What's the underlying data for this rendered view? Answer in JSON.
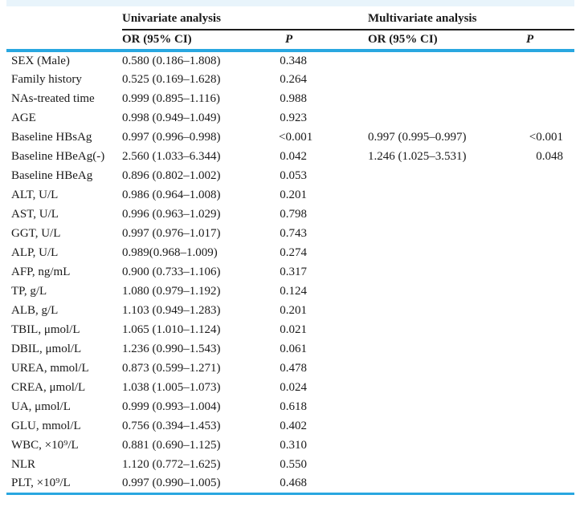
{
  "page": {
    "background": "#ffffff"
  },
  "table": {
    "accent_color": "#29a7e0",
    "topbar_color": "#e8f4fb",
    "groups": [
      {
        "label": "Univariate analysis"
      },
      {
        "label": "Multivariate analysis"
      }
    ],
    "subheaders": {
      "or": "OR (95% CI)",
      "p": "P"
    },
    "rows": [
      {
        "label": "SEX (Male)",
        "uni_or": "0.580 (0.186–1.808)",
        "uni_p": "0.348",
        "multi_or": "",
        "multi_p": ""
      },
      {
        "label": "Family history",
        "uni_or": "0.525 (0.169–1.628)",
        "uni_p": "0.264",
        "multi_or": "",
        "multi_p": ""
      },
      {
        "label": "NAs-treated time",
        "uni_or": "0.999 (0.895–1.116)",
        "uni_p": "0.988",
        "multi_or": "",
        "multi_p": ""
      },
      {
        "label": "AGE",
        "uni_or": "0.998 (0.949–1.049)",
        "uni_p": "0.923",
        "multi_or": "",
        "multi_p": ""
      },
      {
        "label": "Baseline HBsAg",
        "uni_or": "0.997 (0.996–0.998)",
        "uni_p": "<0.001",
        "multi_or": "0.997 (0.995–0.997)",
        "multi_p": "<0.001"
      },
      {
        "label": "Baseline HBeAg(-)",
        "uni_or": "2.560 (1.033–6.344)",
        "uni_p": "0.042",
        "multi_or": "1.246 (1.025–3.531)",
        "multi_p": "0.048"
      },
      {
        "label": "Baseline HBeAg",
        "uni_or": "0.896 (0.802–1.002)",
        "uni_p": "0.053",
        "multi_or": "",
        "multi_p": ""
      },
      {
        "label": "ALT, U/L",
        "uni_or": "0.986 (0.964–1.008)",
        "uni_p": "0.201",
        "multi_or": "",
        "multi_p": ""
      },
      {
        "label": "AST, U/L",
        "uni_or": "0.996 (0.963–1.029)",
        "uni_p": "0.798",
        "multi_or": "",
        "multi_p": ""
      },
      {
        "label": "GGT, U/L",
        "uni_or": "0.997 (0.976–1.017)",
        "uni_p": "0.743",
        "multi_or": "",
        "multi_p": ""
      },
      {
        "label": "ALP, U/L",
        "uni_or": "0.989(0.968–1.009)",
        "uni_p": "0.274",
        "multi_or": "",
        "multi_p": ""
      },
      {
        "label": "AFP, ng/mL",
        "uni_or": "0.900 (0.733–1.106)",
        "uni_p": "0.317",
        "multi_or": "",
        "multi_p": ""
      },
      {
        "label": "TP, g/L",
        "uni_or": "1.080 (0.979–1.192)",
        "uni_p": "0.124",
        "multi_or": "",
        "multi_p": ""
      },
      {
        "label": "ALB, g/L",
        "uni_or": "1.103 (0.949–1.283)",
        "uni_p": "0.201",
        "multi_or": "",
        "multi_p": ""
      },
      {
        "label": "TBIL, μmol/L",
        "uni_or": "1.065 (1.010–1.124)",
        "uni_p": "0.021",
        "multi_or": "",
        "multi_p": ""
      },
      {
        "label": "DBIL, μmol/L",
        "uni_or": "1.236 (0.990–1.543)",
        "uni_p": "0.061",
        "multi_or": "",
        "multi_p": ""
      },
      {
        "label": "UREA, mmol/L",
        "uni_or": "0.873 (0.599–1.271)",
        "uni_p": "0.478",
        "multi_or": "",
        "multi_p": ""
      },
      {
        "label": "CREA, μmol/L",
        "uni_or": "1.038 (1.005–1.073)",
        "uni_p": "0.024",
        "multi_or": "",
        "multi_p": ""
      },
      {
        "label": "UA, μmol/L",
        "uni_or": "0.999 (0.993–1.004)",
        "uni_p": "0.618",
        "multi_or": "",
        "multi_p": ""
      },
      {
        "label": "GLU, mmol/L",
        "uni_or": "0.756 (0.394–1.453)",
        "uni_p": "0.402",
        "multi_or": "",
        "multi_p": ""
      },
      {
        "label": "WBC, ×10⁹/L",
        "uni_or": "0.881 (0.690–1.125)",
        "uni_p": "0.310",
        "multi_or": "",
        "multi_p": ""
      },
      {
        "label": "NLR",
        "uni_or": "1.120 (0.772–1.625)",
        "uni_p": "0.550",
        "multi_or": "",
        "multi_p": ""
      },
      {
        "label": "PLT, ×10⁹/L",
        "uni_or": "0.997 (0.990–1.005)",
        "uni_p": "0.468",
        "multi_or": "",
        "multi_p": ""
      }
    ]
  }
}
